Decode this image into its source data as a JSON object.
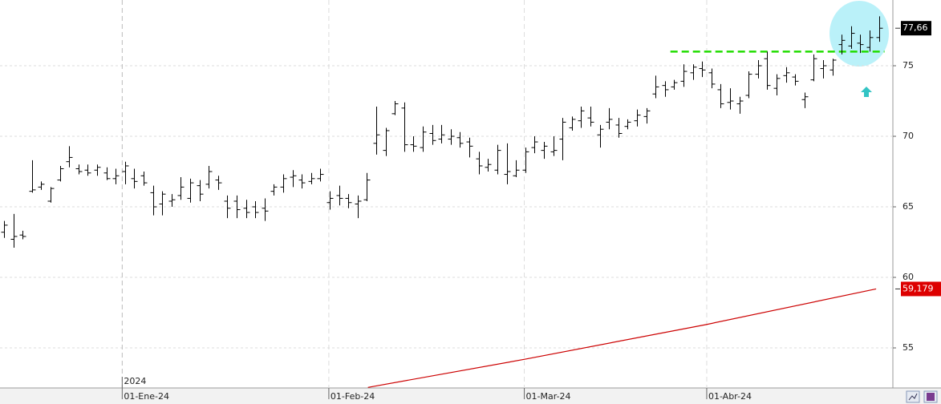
{
  "chart_data": {
    "type": "ohlc",
    "ohlc": {
      "color": "#000000",
      "open": [
        63.2,
        62.7,
        63.0,
        66.1,
        66.4,
        65.4,
        66.9,
        68.2,
        67.7,
        67.6,
        67.6,
        67.4,
        67.0,
        67.5,
        67.0,
        67.2,
        66.0,
        65.2,
        65.4,
        65.8,
        65.6,
        66.5,
        66.6,
        66.9,
        65.4,
        65.4,
        64.9,
        65.0,
        64.9,
        66.1,
        66.4,
        67.1,
        66.9,
        66.8,
        67.0,
        65.3,
        65.8,
        65.6,
        65.2,
        65.5,
        69.5,
        69.0,
        71.6,
        72.0,
        69.4,
        69.2,
        70.2,
        69.8,
        69.8,
        69.9,
        69.6,
        68.4,
        67.8,
        67.6,
        67.3,
        67.2,
        67.6,
        69.2,
        69.0,
        68.9,
        69.8,
        70.6,
        71.1,
        71.3,
        70.1,
        71.0,
        70.8,
        70.7,
        71.1,
        71.4,
        73.0,
        73.6,
        73.5,
        73.9,
        74.5,
        74.8,
        74.5,
        73.3,
        72.4,
        72.3,
        72.9,
        74.4,
        75.5,
        73.4,
        74.3,
        74.2,
        72.6,
        74.0,
        74.8,
        74.7,
        76.5,
        76.4,
        76.6,
        76.3,
        77.0
      ],
      "high": [
        64.0,
        64.5,
        63.3,
        68.3,
        66.8,
        66.4,
        67.9,
        69.3,
        68.0,
        68.0,
        68.0,
        67.8,
        67.7,
        68.2,
        67.7,
        67.5,
        66.5,
        66.1,
        65.9,
        67.1,
        67.0,
        66.9,
        67.9,
        67.2,
        65.8,
        65.8,
        65.5,
        65.4,
        65.6,
        66.6,
        67.3,
        67.6,
        67.3,
        67.4,
        67.7,
        66.1,
        66.5,
        65.9,
        65.8,
        67.4,
        72.1,
        70.6,
        72.5,
        72.4,
        70.0,
        70.7,
        70.8,
        70.8,
        70.5,
        70.3,
        69.9,
        68.9,
        68.4,
        69.4,
        69.5,
        68.3,
        69.2,
        70.0,
        69.6,
        70.0,
        71.3,
        71.4,
        72.1,
        72.1,
        70.8,
        72.0,
        71.3,
        71.2,
        71.9,
        72.0,
        74.3,
        73.9,
        74.0,
        75.1,
        75.1,
        75.3,
        74.8,
        73.7,
        73.4,
        72.8,
        74.6,
        75.4,
        76.0,
        74.4,
        74.9,
        74.4,
        73.1,
        75.8,
        75.4,
        75.5,
        77.2,
        77.8,
        77.2,
        77.5,
        78.5
      ],
      "low": [
        62.8,
        62.1,
        62.7,
        66.0,
        66.2,
        65.3,
        66.8,
        67.8,
        67.3,
        67.2,
        67.2,
        66.9,
        66.6,
        66.6,
        66.3,
        66.5,
        64.4,
        64.4,
        65.0,
        65.5,
        65.3,
        65.4,
        66.3,
        66.2,
        64.2,
        64.2,
        64.2,
        64.2,
        64.0,
        65.8,
        66.0,
        66.4,
        66.3,
        66.6,
        66.8,
        64.8,
        65.1,
        64.9,
        64.2,
        65.4,
        68.7,
        68.6,
        71.5,
        68.9,
        68.9,
        68.9,
        69.4,
        69.5,
        69.4,
        69.2,
        68.5,
        67.3,
        67.5,
        67.3,
        66.6,
        67.1,
        67.4,
        68.8,
        68.4,
        68.6,
        68.3,
        70.4,
        70.6,
        70.7,
        69.2,
        70.5,
        69.9,
        70.5,
        70.7,
        70.9,
        72.7,
        72.8,
        73.3,
        73.5,
        74.0,
        74.2,
        73.4,
        72.0,
        71.9,
        71.6,
        72.7,
        74.1,
        73.3,
        72.9,
        73.8,
        73.6,
        72.0,
        73.9,
        74.1,
        74.3,
        75.8,
        76.2,
        75.9,
        76.0,
        76.7
      ],
      "close": [
        63.7,
        62.9,
        62.9,
        66.2,
        66.6,
        66.3,
        67.7,
        68.5,
        67.5,
        67.4,
        67.8,
        67.0,
        67.2,
        67.9,
        66.8,
        66.7,
        65.0,
        65.9,
        65.5,
        66.4,
        66.7,
        65.9,
        67.5,
        66.7,
        64.9,
        64.8,
        64.6,
        64.6,
        64.7,
        66.4,
        67.0,
        67.2,
        66.7,
        67.0,
        67.3,
        65.6,
        65.6,
        65.3,
        65.4,
        66.9,
        70.1,
        70.4,
        72.3,
        69.4,
        69.3,
        70.3,
        69.7,
        70.1,
        70.0,
        69.5,
        69.3,
        67.9,
        68.0,
        69.0,
        67.5,
        67.6,
        68.9,
        69.6,
        69.3,
        69.0,
        71.0,
        71.2,
        71.8,
        71.0,
        70.5,
        71.2,
        70.2,
        71.0,
        71.5,
        71.8,
        73.5,
        73.3,
        73.8,
        74.6,
        74.9,
        74.7,
        73.7,
        72.3,
        72.5,
        72.5,
        74.4,
        75.0,
        73.6,
        74.1,
        74.5,
        73.9,
        72.8,
        75.5,
        75.0,
        75.4,
        76.8,
        77.3,
        76.5,
        77.0,
        77.66
      ]
    },
    "moving_average": {
      "color": "#cc0000",
      "x": [
        39.1,
        56,
        75.4,
        93.7
      ],
      "values": [
        52.2,
        54.2,
        56.65,
        59.179
      ]
    },
    "resistance": {
      "color": "#22dd00",
      "value": 76.0,
      "x_range": [
        71.6,
        94.6
      ]
    },
    "last_price": {
      "value": 77.66,
      "label": "77,66",
      "color": "#000000"
    },
    "average_price": {
      "value": 59.179,
      "label": "59,179",
      "color": "#dd0000"
    },
    "xlim": [
      -0.43,
      95.5
    ],
    "xticks": [
      {
        "value": 12.7,
        "label": "01-Ene-24"
      },
      {
        "value": 34.9,
        "label": "01-Feb-24"
      },
      {
        "value": 55.9,
        "label": "01-Mar-24"
      },
      {
        "value": 75.5,
        "label": "01-Abr-24"
      }
    ],
    "year_label": {
      "value": 12.7,
      "label": "2024"
    },
    "ylim": [
      52.16,
      79.66
    ],
    "yticks": [
      55,
      60,
      65,
      70,
      75
    ],
    "grid": true
  }
}
